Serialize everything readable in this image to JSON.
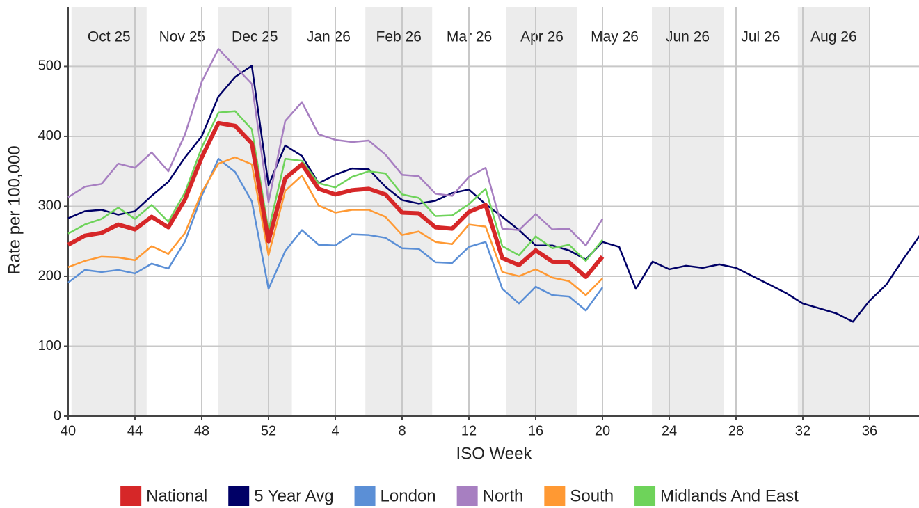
{
  "chart_data": {
    "type": "line",
    "x_label": "ISO Week",
    "y_label": "Rate per 100,000",
    "categories": [
      40,
      null,
      null,
      null,
      44,
      null,
      null,
      null,
      48,
      null,
      null,
      null,
      52,
      null,
      null,
      null,
      4,
      null,
      null,
      null,
      8,
      null,
      null,
      null,
      12,
      null,
      null,
      null,
      16,
      null,
      null,
      null,
      20,
      null,
      null,
      null,
      24,
      null,
      null,
      null,
      28,
      null,
      null,
      null,
      32,
      null,
      null,
      null,
      36,
      null,
      null,
      null
    ],
    "ylim": [
      0,
      585
    ],
    "yticks": [
      0,
      100,
      200,
      300,
      400,
      500
    ],
    "grid": true,
    "month_bands": [
      {
        "label": "Oct 25",
        "start": 0.2,
        "end": 4.7,
        "shaded": true
      },
      {
        "label": "Nov 25",
        "start": 4.7,
        "end": 8.96,
        "shaded": false
      },
      {
        "label": "Dec 25",
        "start": 8.96,
        "end": 13.4,
        "shaded": true
      },
      {
        "label": "Jan 26",
        "start": 13.4,
        "end": 17.8,
        "shaded": false
      },
      {
        "label": "Feb 26",
        "start": 17.8,
        "end": 21.8,
        "shaded": true
      },
      {
        "label": "Mar 26",
        "start": 21.8,
        "end": 26.25,
        "shaded": false
      },
      {
        "label": "Apr 26",
        "start": 26.25,
        "end": 30.5,
        "shaded": true
      },
      {
        "label": "May 26",
        "start": 30.5,
        "end": 34.96,
        "shaded": false
      },
      {
        "label": "Jun 26",
        "start": 34.96,
        "end": 39.25,
        "shaded": true
      },
      {
        "label": "Jul 26",
        "start": 39.25,
        "end": 43.7,
        "shaded": false
      },
      {
        "label": "Aug 26",
        "start": 43.7,
        "end": 48,
        "shaded": true
      }
    ],
    "legend": "bottom",
    "series": [
      {
        "name": "National",
        "color": "#d62728",
        "values": [
          245,
          258,
          262,
          274,
          267,
          285,
          270,
          310,
          370,
          419,
          415,
          390,
          250,
          340,
          360,
          325,
          317,
          323,
          325,
          317,
          291,
          290,
          270,
          268,
          292,
          302,
          226,
          216,
          237,
          221,
          220,
          199,
          228,
          null,
          null,
          null,
          null,
          null,
          null,
          null,
          null,
          null,
          null,
          null,
          null,
          null,
          null,
          null,
          null,
          null,
          null,
          null
        ]
      },
      {
        "name": "5 Year Avg",
        "color": "#000066",
        "values": [
          283,
          293,
          295,
          288,
          293,
          315,
          335,
          370,
          400,
          457,
          485,
          501,
          330,
          387,
          372,
          333,
          345,
          354,
          353,
          328,
          309,
          304,
          308,
          319,
          324,
          303,
          285,
          266,
          244,
          244,
          237,
          224,
          249,
          242,
          182,
          221,
          210,
          215,
          212,
          217,
          212,
          200,
          188,
          176,
          161,
          154,
          147,
          135,
          165,
          188,
          224,
          258
        ]
      },
      {
        "name": "London",
        "color": "#5b8fd6",
        "values": [
          191,
          209,
          206,
          209,
          204,
          218,
          211,
          250,
          315,
          368,
          349,
          307,
          182,
          236,
          266,
          245,
          244,
          260,
          259,
          255,
          240,
          239,
          220,
          219,
          242,
          249,
          182,
          161,
          185,
          173,
          171,
          151,
          184,
          null,
          null,
          null,
          null,
          null,
          null,
          null,
          null,
          null,
          null,
          null,
          null,
          null,
          null,
          null,
          null,
          null,
          null,
          null
        ]
      },
      {
        "name": "North",
        "color": "#a77fc1",
        "values": [
          313,
          328,
          332,
          361,
          355,
          377,
          350,
          403,
          478,
          525,
          500,
          475,
          306,
          422,
          449,
          403,
          395,
          392,
          394,
          374,
          345,
          343,
          318,
          315,
          342,
          355,
          268,
          266,
          289,
          267,
          268,
          244,
          282,
          null,
          null,
          null,
          null,
          null,
          null,
          null,
          null,
          null,
          null,
          null,
          null,
          null,
          null,
          null,
          null,
          null,
          null,
          null
        ]
      },
      {
        "name": "South",
        "color": "#ff9933",
        "values": [
          213,
          222,
          228,
          227,
          223,
          243,
          232,
          262,
          320,
          361,
          370,
          360,
          230,
          322,
          344,
          301,
          291,
          295,
          295,
          285,
          259,
          264,
          249,
          246,
          274,
          271,
          206,
          200,
          210,
          198,
          193,
          173,
          197,
          null,
          null,
          null,
          null,
          null,
          null,
          null,
          null,
          null,
          null,
          null,
          null,
          null,
          null,
          null,
          null,
          null,
          null,
          null
        ]
      },
      {
        "name": "Midlands And East",
        "color": "#6ed35a",
        "values": [
          261,
          274,
          282,
          298,
          282,
          302,
          278,
          320,
          384,
          434,
          436,
          410,
          265,
          368,
          365,
          333,
          327,
          342,
          350,
          347,
          317,
          312,
          286,
          287,
          303,
          325,
          243,
          230,
          257,
          240,
          245,
          222,
          252,
          null,
          null,
          null,
          null,
          null,
          null,
          null,
          null,
          null,
          null,
          null,
          null,
          null,
          null,
          null,
          null,
          null,
          null,
          null
        ]
      }
    ]
  }
}
